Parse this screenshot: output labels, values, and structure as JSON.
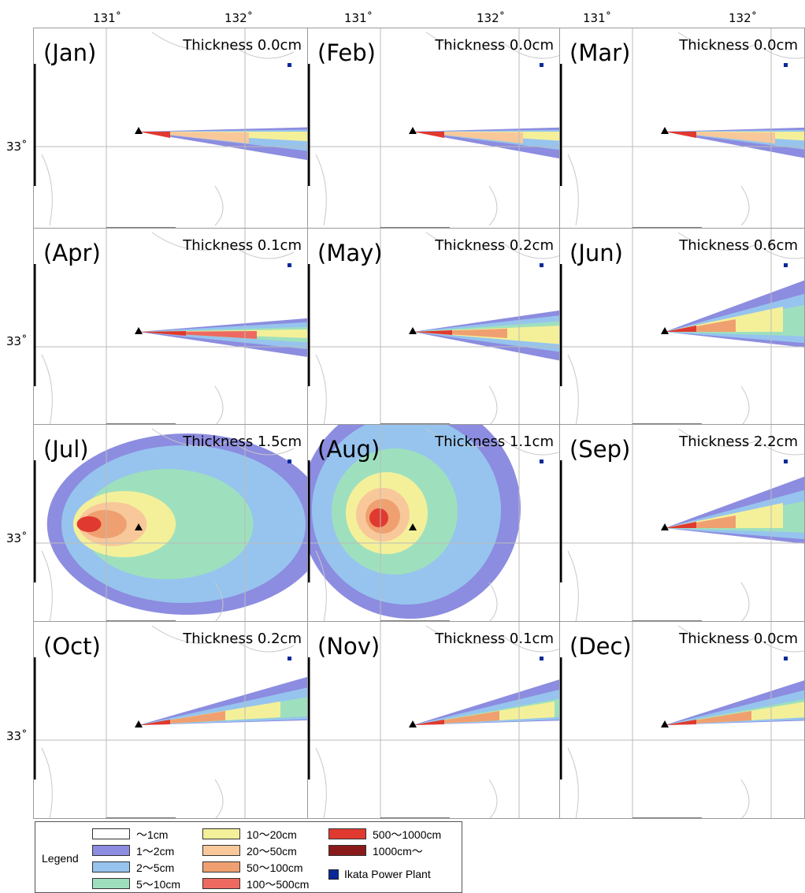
{
  "axes": {
    "lon_labels": [
      "131˚",
      "132˚",
      "131˚",
      "132˚",
      "131˚",
      "132˚"
    ],
    "lat_label": "33˚"
  },
  "panels": [
    {
      "month": "(Jan)",
      "thickness": "Thickness 0.0cm",
      "pattern": "narrow"
    },
    {
      "month": "(Feb)",
      "thickness": "Thickness 0.0cm",
      "pattern": "narrow"
    },
    {
      "month": "(Mar)",
      "thickness": "Thickness 0.0cm",
      "pattern": "narrow"
    },
    {
      "month": "(Apr)",
      "thickness": "Thickness 0.1cm",
      "pattern": "narrow-long"
    },
    {
      "month": "(May)",
      "thickness": "Thickness 0.2cm",
      "pattern": "medium"
    },
    {
      "month": "(Jun)",
      "thickness": "Thickness 0.6cm",
      "pattern": "wide-ne"
    },
    {
      "month": "(Jul)",
      "thickness": "Thickness 1.5cm",
      "pattern": "round"
    },
    {
      "month": "(Aug)",
      "thickness": "Thickness 1.1cm",
      "pattern": "round-big"
    },
    {
      "month": "(Sep)",
      "thickness": "Thickness 2.2cm",
      "pattern": "wide-ne"
    },
    {
      "month": "(Oct)",
      "thickness": "Thickness 0.2cm",
      "pattern": "ne"
    },
    {
      "month": "(Nov)",
      "thickness": "Thickness 0.1cm",
      "pattern": "ne"
    },
    {
      "month": "(Dec)",
      "thickness": "Thickness 0.0cm",
      "pattern": "ne"
    }
  ],
  "legend": {
    "title": "Legend",
    "items": [
      {
        "label": "～1cm",
        "color": "#ffffff"
      },
      {
        "label": "1～2cm",
        "color": "#8c8ce0"
      },
      {
        "label": "2～5cm",
        "color": "#96c4ee"
      },
      {
        "label": "5～10cm",
        "color": "#9ee0be"
      },
      {
        "label": "10～20cm",
        "color": "#f4f09a"
      },
      {
        "label": "20～50cm",
        "color": "#f8c89a"
      },
      {
        "label": "50～100cm",
        "color": "#f0a070"
      },
      {
        "label": "100～500cm",
        "color": "#ee6a60"
      },
      {
        "label": "500～1000cm",
        "color": "#e03a30"
      },
      {
        "label": "1000cm～",
        "color": "#8a1a1a"
      }
    ],
    "plant_label": "Ikata Power Plant",
    "plant_color": "#0a2a9a"
  }
}
